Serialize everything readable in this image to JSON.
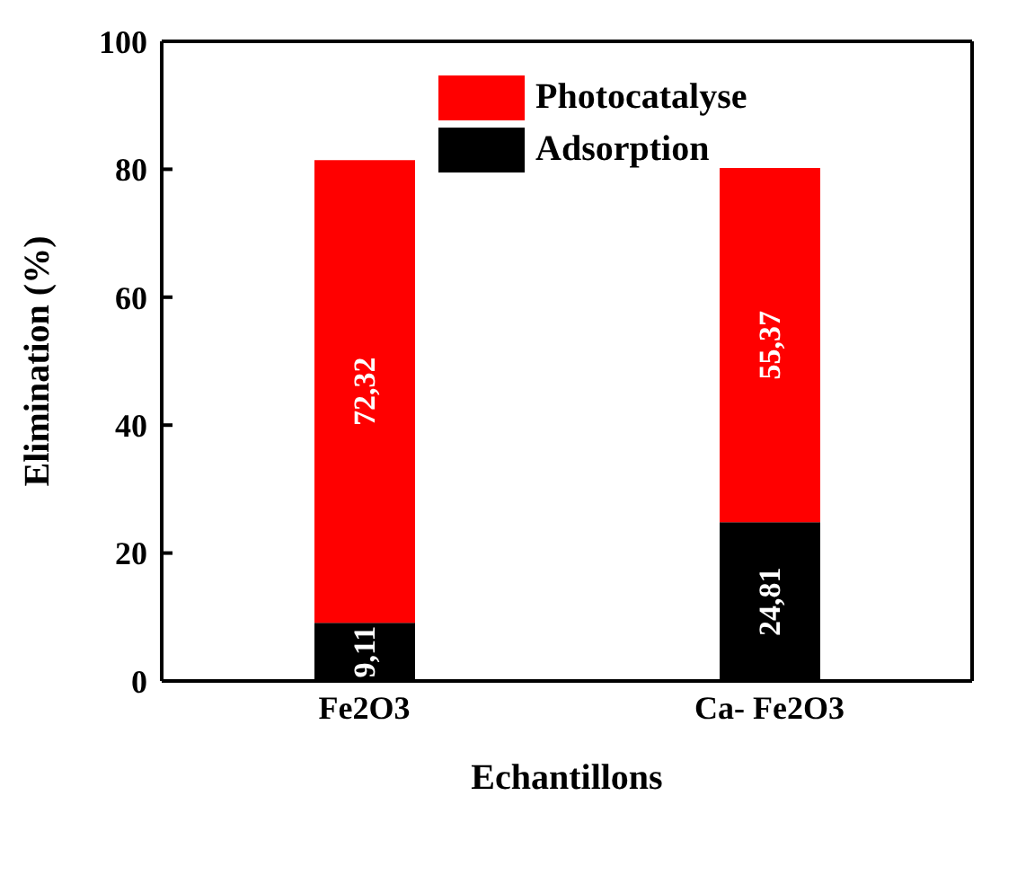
{
  "chart_data": {
    "type": "bar",
    "stacked": true,
    "xlabel": "Echantillons",
    "ylabel": "Elimination (%)",
    "categories": [
      "Fe2O3",
      "Ca- Fe2O3"
    ],
    "series": [
      {
        "name": "Adsorption",
        "color": "#000000",
        "values": [
          9.11,
          24.81
        ],
        "value_labels": [
          "9,11",
          "24,81"
        ]
      },
      {
        "name": "Photocatalyse",
        "color": "#ff0000",
        "values": [
          72.32,
          55.37
        ],
        "value_labels": [
          "72,32",
          "55,37"
        ]
      }
    ],
    "ylim": [
      0,
      100
    ],
    "yticks": [
      0,
      20,
      40,
      60,
      80,
      100
    ],
    "legend": "top",
    "grid": false
  }
}
